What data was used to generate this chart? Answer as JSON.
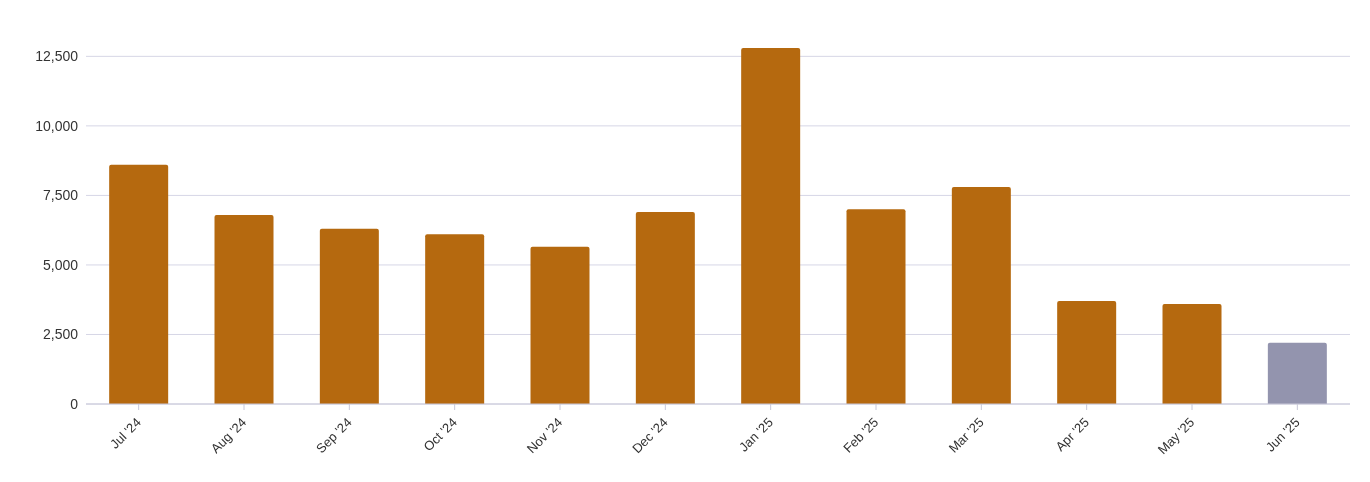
{
  "chart_data": {
    "type": "bar",
    "categories": [
      "Jul '24",
      "Aug '24",
      "Sep '24",
      "Oct '24",
      "Nov '24",
      "Dec '24",
      "Jan '25",
      "Feb '25",
      "Mar '25",
      "Apr '25",
      "May '25",
      "Jun '25"
    ],
    "values": [
      8600,
      6800,
      6300,
      6100,
      5650,
      6900,
      12800,
      7000,
      7800,
      3700,
      3600,
      2200
    ],
    "colors": [
      "#b5690f",
      "#b5690f",
      "#b5690f",
      "#b5690f",
      "#b5690f",
      "#b5690f",
      "#b5690f",
      "#b5690f",
      "#b5690f",
      "#b5690f",
      "#b5690f",
      "#9394ae"
    ],
    "ylim": [
      0,
      12800
    ],
    "yticks": [
      0,
      {
        "value": 2500,
        "label": "2,500"
      },
      {
        "value": 5000,
        "label": "5,000"
      },
      {
        "value": 7500,
        "label": "7,500"
      },
      {
        "value": 10000,
        "label": "10,000"
      },
      {
        "value": 12500,
        "label": "12,500"
      }
    ],
    "grid": "y"
  }
}
